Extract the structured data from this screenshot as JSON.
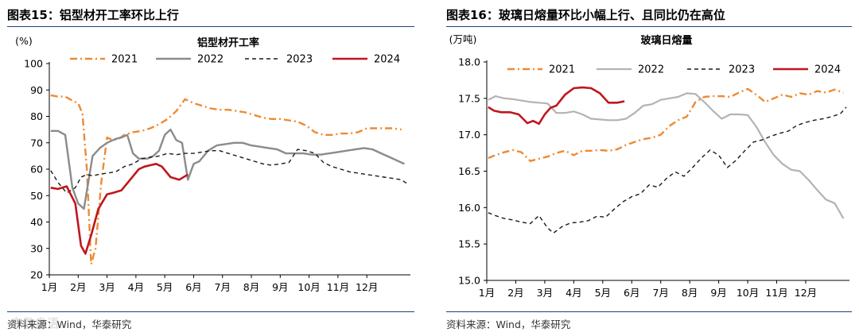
{
  "chart_data": [
    {
      "type": "line",
      "figure_label": "图表15：",
      "figure_title": "铝型材开工率环比上行",
      "title": "铝型材开工率",
      "unit_label": "(%)",
      "ylim": [
        20,
        100
      ],
      "yticks": [
        20,
        30,
        40,
        50,
        60,
        70,
        80,
        90,
        100
      ],
      "x_domain": [
        0,
        12.4
      ],
      "xtick_labels": [
        "1月",
        "2月",
        "3月",
        "4月",
        "5月",
        "6月",
        "7月",
        "8月",
        "9月",
        "10月",
        "11月",
        "12月"
      ],
      "legend_position": "top",
      "source": "资料来源：Wind，华泰研究",
      "watermark": "东数盎语",
      "series": [
        {
          "name": "2021",
          "color": "#ee8a32",
          "style": "dashdot",
          "width": 2.4,
          "x": [
            0.05,
            0.3,
            0.55,
            0.8,
            1.0,
            1.15,
            1.3,
            1.45,
            1.6,
            1.8,
            2.0,
            2.2,
            2.4,
            2.6,
            2.9,
            3.2,
            3.5,
            3.8,
            4.1,
            4.4,
            4.7,
            5.0,
            5.3,
            5.6,
            5.9,
            6.2,
            6.5,
            6.8,
            7.1,
            7.4,
            7.7,
            8.0,
            8.3,
            8.6,
            8.9,
            9.2,
            9.5,
            9.8,
            10.1,
            10.4,
            10.7,
            11.0,
            11.3,
            11.6,
            11.9,
            12.2
          ],
          "values": [
            88,
            87.5,
            87.5,
            86,
            85,
            81,
            60,
            24,
            30,
            55,
            72,
            71,
            71.5,
            73,
            74,
            74.5,
            75.5,
            77,
            79,
            82,
            86.5,
            85,
            84,
            83,
            82.5,
            82.5,
            82,
            81.5,
            80.5,
            79.5,
            79,
            79,
            78.5,
            78,
            76.5,
            74,
            73,
            73,
            73.5,
            73.5,
            74,
            75.5,
            75.5,
            75.5,
            75.5,
            75
          ]
        },
        {
          "name": "2022",
          "color": "#8b8b8b",
          "style": "solid",
          "width": 2.4,
          "x": [
            0.05,
            0.3,
            0.55,
            0.8,
            1.0,
            1.2,
            1.5,
            1.75,
            2.0,
            2.3,
            2.5,
            2.7,
            2.9,
            3.1,
            3.4,
            3.6,
            3.8,
            4.0,
            4.2,
            4.4,
            4.6,
            4.8,
            5.0,
            5.2,
            5.5,
            5.8,
            6.1,
            6.4,
            6.7,
            7.0,
            7.3,
            7.6,
            7.9,
            8.2,
            8.5,
            8.8,
            9.1,
            9.4,
            9.7,
            10.0,
            10.3,
            10.6,
            10.9,
            11.2,
            11.5,
            11.8,
            12.1,
            12.3
          ],
          "values": [
            74.5,
            74.5,
            73,
            53,
            47,
            45,
            65,
            68,
            70,
            71.5,
            72,
            73,
            66,
            64,
            64,
            65,
            67,
            73,
            75,
            71,
            70,
            56,
            62,
            63,
            67,
            69,
            69.5,
            70,
            70,
            69,
            68.5,
            68,
            67.5,
            66,
            66,
            66,
            65.5,
            65.5,
            66,
            66.5,
            67,
            67.5,
            68,
            67.5,
            66,
            64.5,
            63,
            62
          ]
        },
        {
          "name": "2023",
          "color": "#1a1a1a",
          "style": "dashed",
          "width": 1.4,
          "x": [
            0.05,
            0.3,
            0.6,
            0.9,
            1.1,
            1.3,
            1.5,
            1.7,
            2.0,
            2.3,
            2.6,
            2.9,
            3.2,
            3.5,
            3.8,
            4.1,
            4.4,
            4.7,
            5.0,
            5.3,
            5.6,
            5.9,
            6.2,
            6.5,
            6.8,
            7.1,
            7.4,
            7.7,
            8.0,
            8.3,
            8.6,
            8.9,
            9.2,
            9.5,
            9.8,
            10.1,
            10.4,
            10.7,
            11.0,
            11.3,
            11.6,
            11.9,
            12.2,
            12.4
          ],
          "values": [
            59.5,
            55,
            51,
            53,
            57,
            58,
            57.5,
            58,
            58.5,
            59,
            61,
            62,
            64,
            64.5,
            65,
            66,
            65.5,
            66,
            66,
            66.5,
            67,
            67,
            66,
            65,
            64,
            63,
            62,
            61.5,
            62,
            62.5,
            67.5,
            67,
            66,
            62.5,
            61,
            60,
            59,
            58.5,
            58,
            57.5,
            57,
            56.5,
            56,
            54.5
          ]
        },
        {
          "name": "2024",
          "color": "#c0161d",
          "style": "solid",
          "width": 2.6,
          "x": [
            0.05,
            0.3,
            0.6,
            0.9,
            1.1,
            1.25,
            1.45,
            1.7,
            2.0,
            2.2,
            2.5,
            2.8,
            3.1,
            3.3,
            3.5,
            3.7,
            3.9,
            4.2,
            4.5,
            4.8
          ],
          "values": [
            53,
            52.5,
            53.5,
            47,
            31,
            28,
            35,
            45,
            50.5,
            51,
            52,
            56,
            60,
            61,
            61.5,
            62,
            61,
            57,
            56,
            58
          ]
        }
      ]
    },
    {
      "type": "line",
      "figure_label": "图表16：",
      "figure_title": "玻璃日熔量环比小幅上行、且同比仍在高位",
      "title": "玻璃日熔量",
      "unit_label": "(万吨)",
      "ylim": [
        15.0,
        18.0
      ],
      "yticks": [
        15.0,
        15.5,
        16.0,
        16.5,
        17.0,
        17.5,
        18.0
      ],
      "x_domain": [
        0,
        12.4
      ],
      "xtick_labels": [
        "1月",
        "2月",
        "3月",
        "4月",
        "5月",
        "6月",
        "7月",
        "8月",
        "9月",
        "10月",
        "11月",
        "12月"
      ],
      "legend_position": "top",
      "source": "资料来源：Wind，华泰研究",
      "series": [
        {
          "name": "2021",
          "color": "#ee8a32",
          "style": "dashdot",
          "width": 2.4,
          "x": [
            0.05,
            0.3,
            0.6,
            0.9,
            1.2,
            1.5,
            1.8,
            2.1,
            2.4,
            2.7,
            3.0,
            3.3,
            3.6,
            3.9,
            4.2,
            4.5,
            4.8,
            5.1,
            5.4,
            5.7,
            6.0,
            6.3,
            6.6,
            6.9,
            7.2,
            7.5,
            7.8,
            8.1,
            8.4,
            8.7,
            9.0,
            9.3,
            9.6,
            9.9,
            10.2,
            10.5,
            10.8,
            11.1,
            11.4,
            11.7,
            12.0,
            12.3
          ],
          "values": [
            16.68,
            16.72,
            16.76,
            16.79,
            16.76,
            16.64,
            16.67,
            16.7,
            16.75,
            16.78,
            16.72,
            16.78,
            16.78,
            16.79,
            16.78,
            16.8,
            16.86,
            16.9,
            16.94,
            16.96,
            17.0,
            17.12,
            17.2,
            17.25,
            17.45,
            17.52,
            17.53,
            17.53,
            17.52,
            17.58,
            17.63,
            17.55,
            17.45,
            17.5,
            17.55,
            17.52,
            17.57,
            17.55,
            17.6,
            17.58,
            17.62,
            17.58
          ]
        },
        {
          "name": "2022",
          "color": "#b3b3b3",
          "style": "solid",
          "width": 2.2,
          "x": [
            0.05,
            0.3,
            0.6,
            0.9,
            1.2,
            1.5,
            1.8,
            2.1,
            2.4,
            2.7,
            3.0,
            3.3,
            3.6,
            3.9,
            4.2,
            4.5,
            4.8,
            5.1,
            5.4,
            5.7,
            6.0,
            6.3,
            6.6,
            6.9,
            7.2,
            7.5,
            7.8,
            8.1,
            8.4,
            8.7,
            9.0,
            9.3,
            9.6,
            9.9,
            10.2,
            10.5,
            10.8,
            11.1,
            11.4,
            11.7,
            12.0,
            12.3
          ],
          "values": [
            17.48,
            17.53,
            17.5,
            17.49,
            17.47,
            17.45,
            17.44,
            17.43,
            17.3,
            17.3,
            17.32,
            17.28,
            17.22,
            17.21,
            17.2,
            17.2,
            17.22,
            17.3,
            17.4,
            17.42,
            17.48,
            17.5,
            17.52,
            17.57,
            17.56,
            17.45,
            17.33,
            17.22,
            17.28,
            17.28,
            17.27,
            17.11,
            16.9,
            16.72,
            16.6,
            16.52,
            16.5,
            16.38,
            16.24,
            16.11,
            16.06,
            15.85
          ]
        },
        {
          "name": "2023",
          "color": "#1a1a1a",
          "style": "dashed",
          "width": 1.4,
          "x": [
            0.05,
            0.3,
            0.6,
            0.9,
            1.2,
            1.5,
            1.8,
            2.1,
            2.3,
            2.6,
            2.9,
            3.2,
            3.5,
            3.8,
            4.1,
            4.4,
            4.7,
            5.0,
            5.3,
            5.6,
            5.9,
            6.2,
            6.5,
            6.8,
            7.1,
            7.4,
            7.7,
            8.0,
            8.3,
            8.6,
            8.9,
            9.2,
            9.5,
            9.8,
            10.1,
            10.4,
            10.7,
            11.0,
            11.3,
            11.6,
            11.9,
            12.2,
            12.4
          ],
          "values": [
            15.93,
            15.89,
            15.85,
            15.83,
            15.8,
            15.78,
            15.89,
            15.72,
            15.65,
            15.74,
            15.79,
            15.8,
            15.82,
            15.88,
            15.87,
            15.98,
            16.08,
            16.15,
            16.19,
            16.31,
            16.28,
            16.4,
            16.49,
            16.43,
            16.55,
            16.68,
            16.79,
            16.72,
            16.55,
            16.65,
            16.78,
            16.9,
            16.93,
            16.98,
            17.02,
            17.05,
            17.13,
            17.17,
            17.2,
            17.22,
            17.25,
            17.29,
            17.38
          ]
        },
        {
          "name": "2024",
          "color": "#c0161d",
          "style": "solid",
          "width": 2.6,
          "x": [
            0.05,
            0.25,
            0.5,
            0.8,
            1.1,
            1.4,
            1.6,
            1.8,
            2.0,
            2.2,
            2.4,
            2.7,
            3.0,
            3.3,
            3.6,
            3.9,
            4.2,
            4.5,
            4.75
          ],
          "values": [
            17.38,
            17.33,
            17.31,
            17.31,
            17.28,
            17.16,
            17.19,
            17.15,
            17.28,
            17.37,
            17.4,
            17.55,
            17.64,
            17.65,
            17.64,
            17.57,
            17.44,
            17.44,
            17.46
          ]
        }
      ]
    }
  ]
}
